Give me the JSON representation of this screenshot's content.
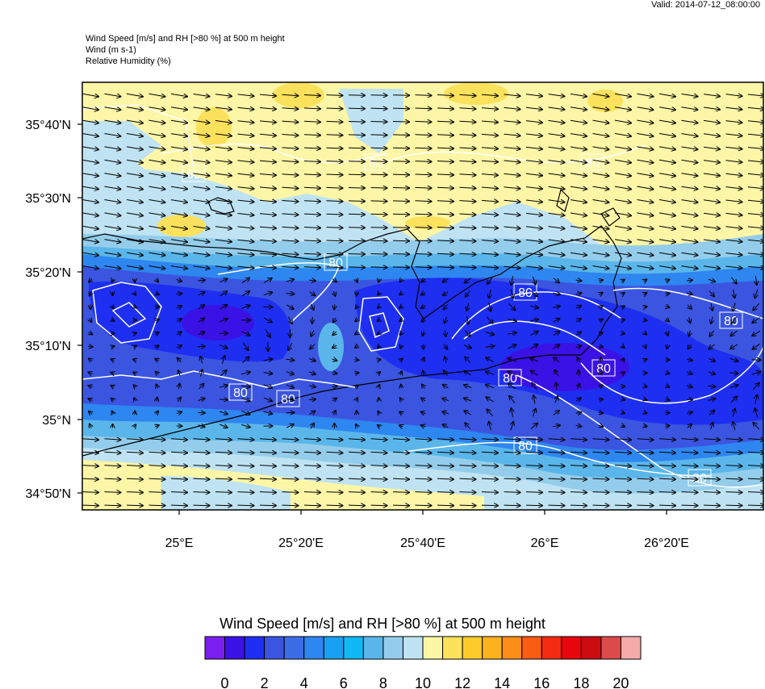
{
  "valid_time": "Valid: 2014-07-12_08:00:00",
  "headers": {
    "line1": "Wind Speed [m/s] and RH [>80 %] at 500 m height",
    "line2": "Wind   (m s-1)",
    "line3": "Relative Humidity   (%)"
  },
  "map": {
    "lat_ticks": [
      "35°40'N",
      "35°30'N",
      "35°20'N",
      "35°10'N",
      "35°N",
      "34°50'N"
    ],
    "lon_ticks": [
      "25°E",
      "25°20'E",
      "25°40'E",
      "26°E",
      "26°20'E"
    ],
    "contour_label": "80"
  },
  "colorbar": {
    "title": "Wind Speed [m/s] and RH [>80 %] at 500 m height",
    "colors": [
      "#7a1ff0",
      "#3a12e6",
      "#1e2ff2",
      "#3b55e0",
      "#3d6de6",
      "#2e86f0",
      "#1aa0f2",
      "#10b8f4",
      "#5ab6ea",
      "#94cdeb",
      "#bfe3f2",
      "#fdf6a6",
      "#fbe15c",
      "#fccb2a",
      "#fcb21c",
      "#fc8d17",
      "#fa5d12",
      "#f42b10",
      "#e8070c",
      "#cc0c10",
      "#dc4a4a",
      "#f5aaaa"
    ],
    "labels": [
      "0",
      "2",
      "4",
      "6",
      "8",
      "10",
      "12",
      "14",
      "16",
      "18",
      "20"
    ]
  }
}
